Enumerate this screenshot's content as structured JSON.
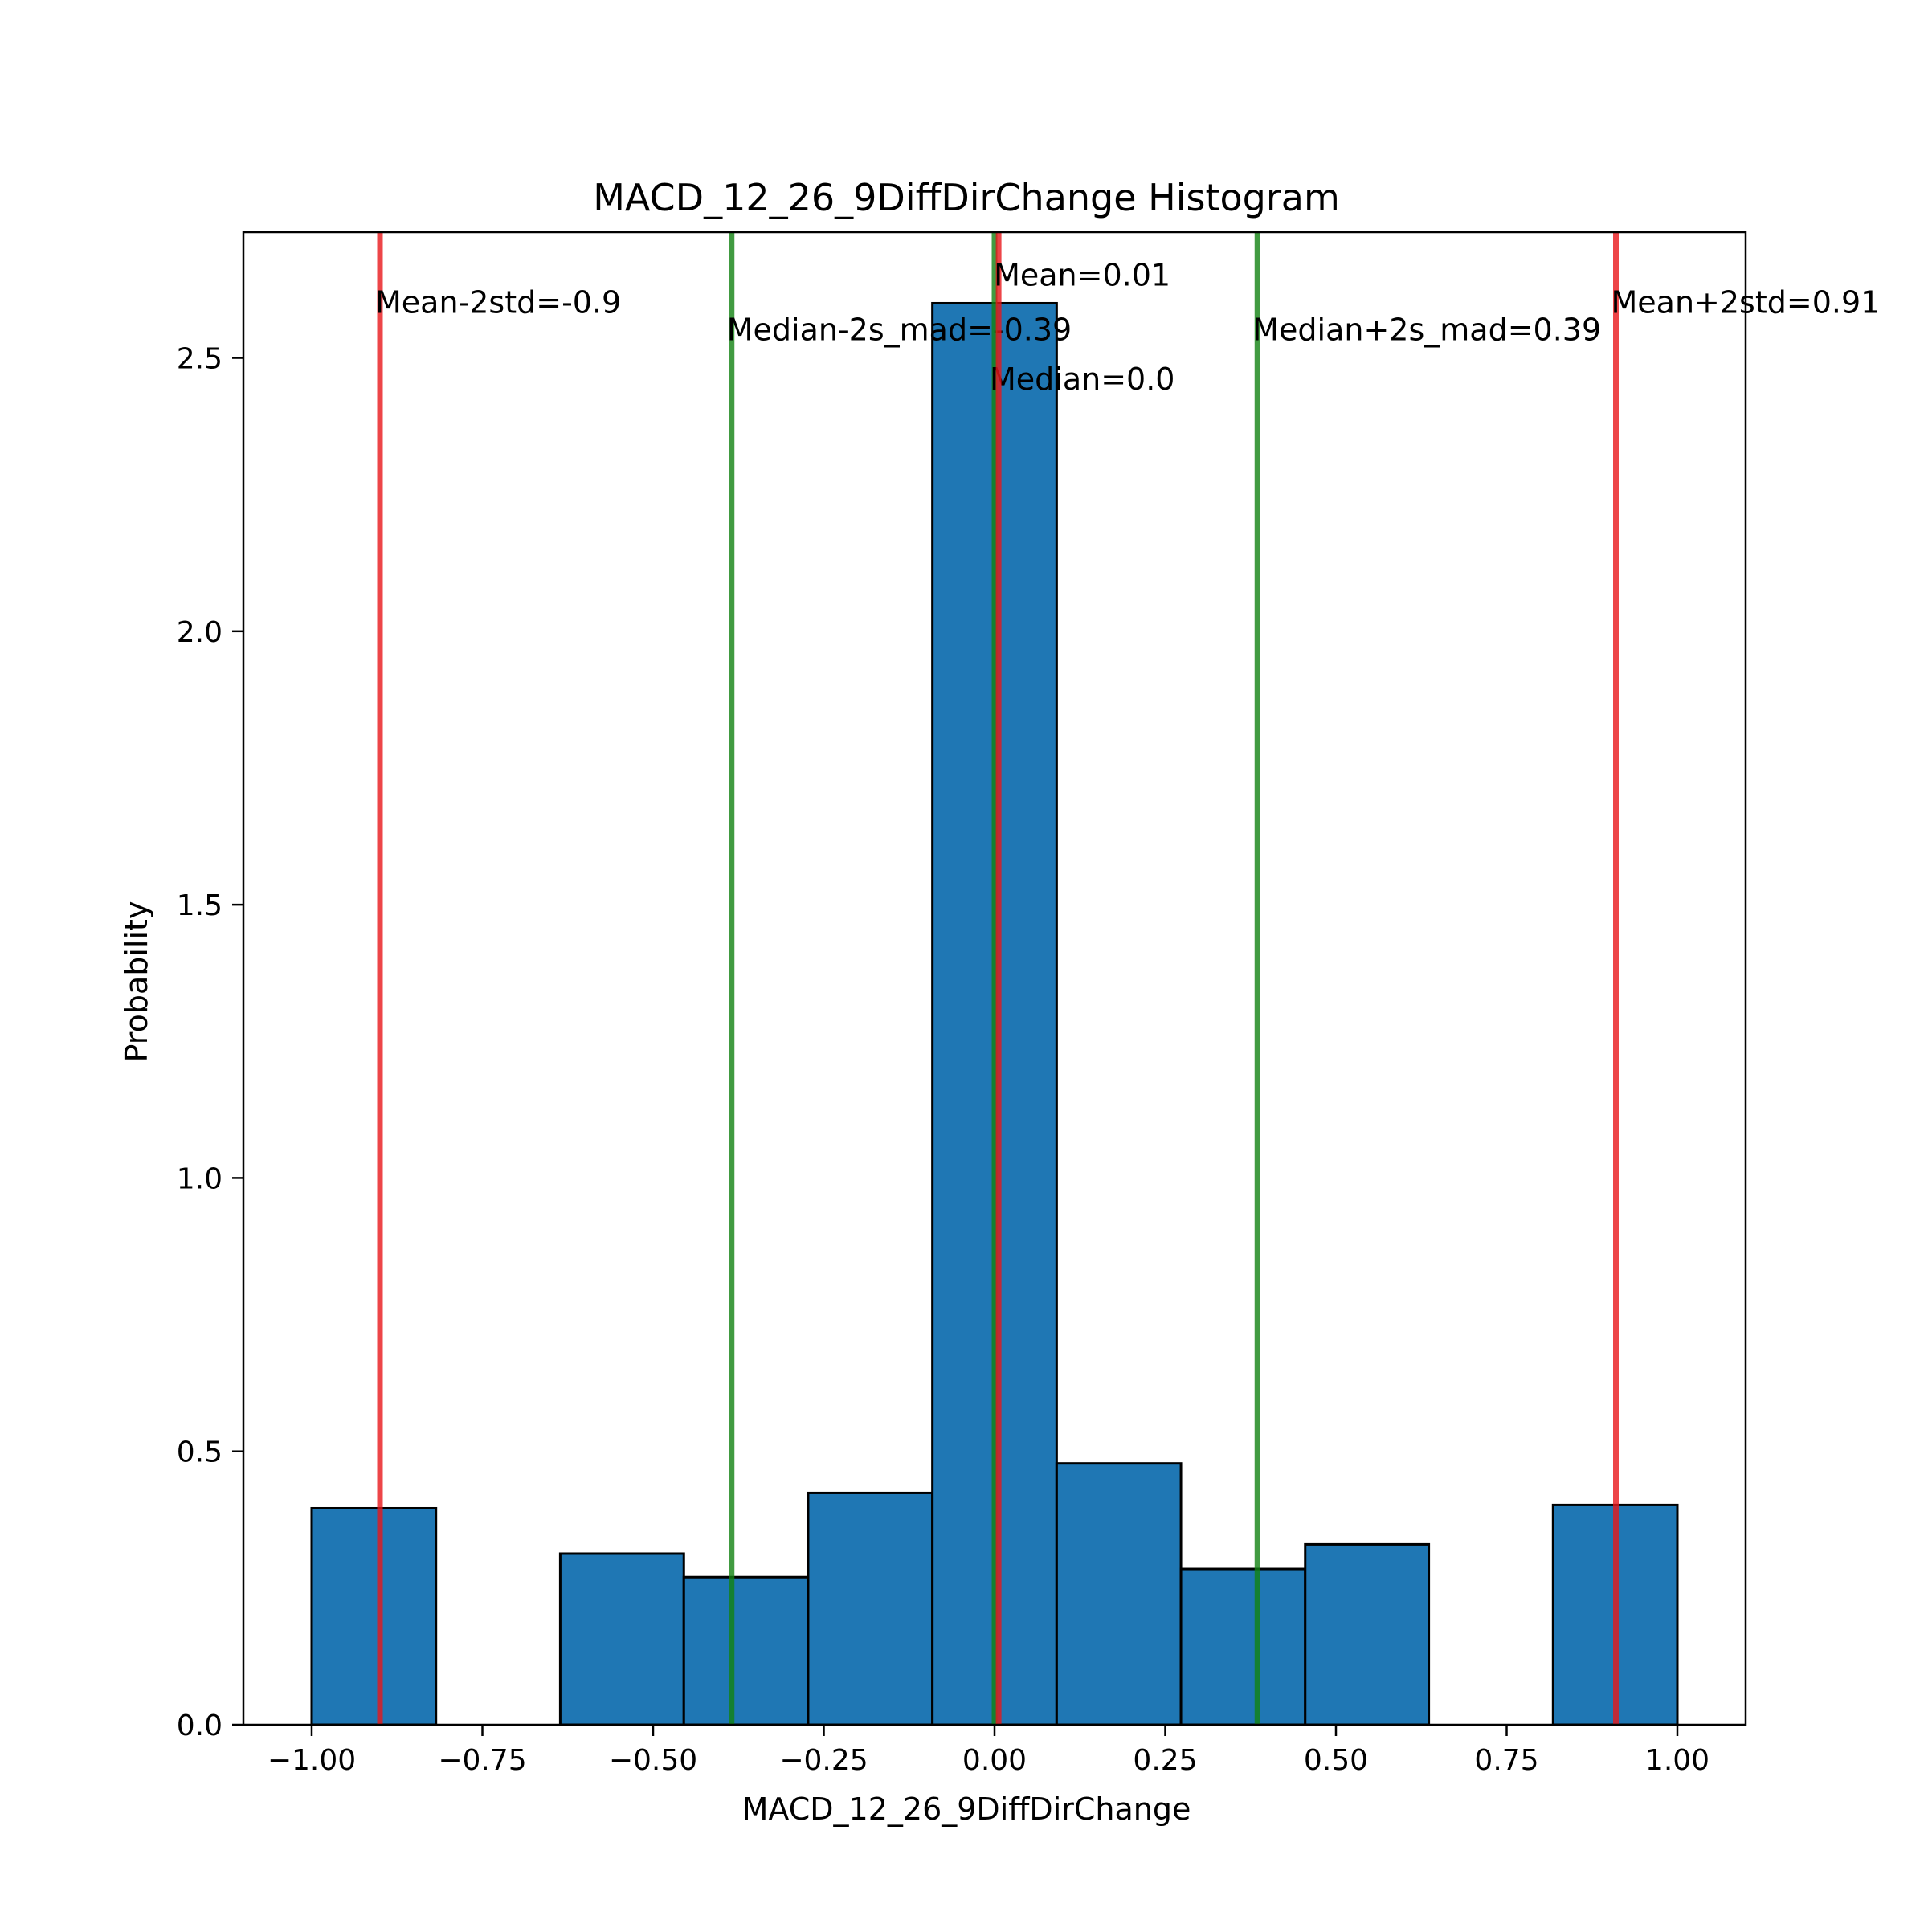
{
  "chart_data": {
    "type": "bar",
    "title": "MACD_12_26_9DiffDirChange Histogram",
    "xlabel": "MACD_12_26_9DiffDirChange",
    "ylabel": "Probability",
    "xlim": [
      -1.1,
      1.1
    ],
    "ylim": [
      0,
      2.73
    ],
    "xticks": [
      -1.0,
      -0.75,
      -0.5,
      -0.25,
      0.0,
      0.25,
      0.5,
      0.75,
      1.0
    ],
    "xtick_labels": [
      "−1.00",
      "−0.75",
      "−0.50",
      "−0.25",
      "0.00",
      "0.25",
      "0.50",
      "0.75",
      "1.00"
    ],
    "yticks": [
      0.0,
      0.5,
      1.0,
      1.5,
      2.0,
      2.5
    ],
    "ytick_labels": [
      "0.0",
      "0.5",
      "1.0",
      "1.5",
      "2.0",
      "2.5"
    ],
    "grid": false,
    "legend": "none",
    "bar_color": "#1f77b4",
    "bar_edge_color": "#000000",
    "bins": [
      {
        "x0": -1.0,
        "x1": -0.818,
        "value": 0.396
      },
      {
        "x0": -0.818,
        "x1": -0.636,
        "value": 0.0
      },
      {
        "x0": -0.636,
        "x1": -0.455,
        "value": 0.313
      },
      {
        "x0": -0.455,
        "x1": -0.273,
        "value": 0.27
      },
      {
        "x0": -0.273,
        "x1": -0.091,
        "value": 0.424
      },
      {
        "x0": -0.091,
        "x1": 0.091,
        "value": 2.6
      },
      {
        "x0": 0.091,
        "x1": 0.273,
        "value": 0.478
      },
      {
        "x0": 0.273,
        "x1": 0.455,
        "value": 0.285
      },
      {
        "x0": 0.455,
        "x1": 0.636,
        "value": 0.33
      },
      {
        "x0": 0.636,
        "x1": 0.818,
        "value": 0.0
      },
      {
        "x0": 0.818,
        "x1": 1.0,
        "value": 0.402
      }
    ],
    "reference_lines": [
      {
        "x": -0.9,
        "label": "Mean-2std=-0.9",
        "color": "#e8161a",
        "label_y": 2.6
      },
      {
        "x": -0.385,
        "label": "Median-2s_mad=-0.39",
        "color": "#128212",
        "label_y": 2.55
      },
      {
        "x": 0.0,
        "label": "Median=0.0",
        "color": "#128212",
        "label_y": 2.46
      },
      {
        "x": 0.006,
        "label": "Mean=0.01",
        "color": "#e8161a",
        "label_y": 2.65
      },
      {
        "x": 0.385,
        "label": "Median+2s_mad=0.39",
        "color": "#128212",
        "label_y": 2.55
      },
      {
        "x": 0.91,
        "label": "Mean+2std=0.91",
        "color": "#e8161a",
        "label_y": 2.6
      }
    ]
  }
}
